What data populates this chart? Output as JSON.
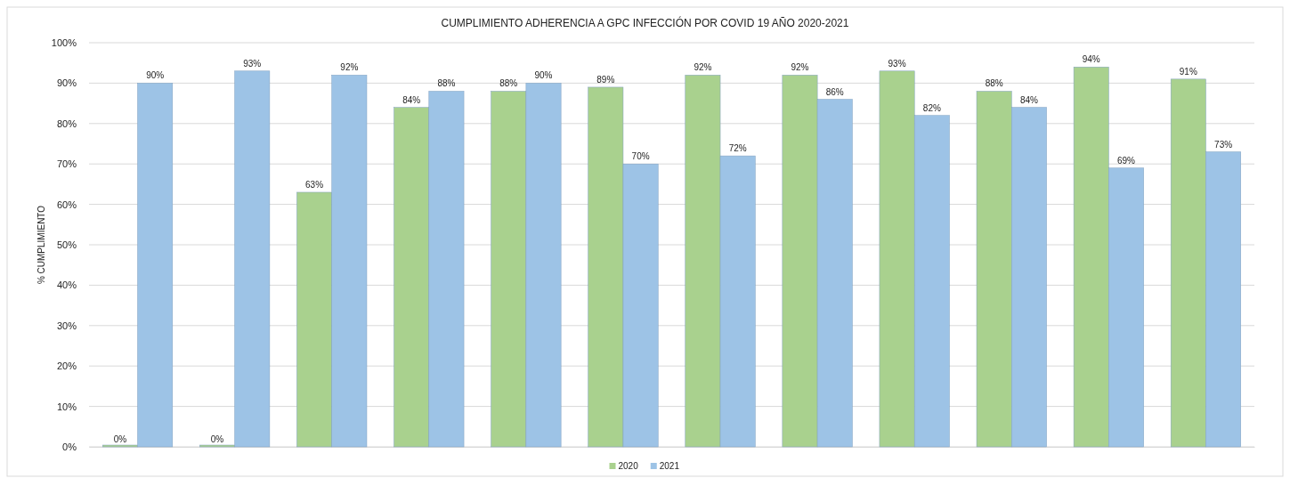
{
  "chart_data": {
    "type": "bar",
    "title": "CUMPLIMIENTO ADHERENCIA A GPC INFECCIÓN POR COVID 19 AÑO 2020-2021",
    "ylabel": "% CUMPLIMIENTO",
    "categories": [
      null,
      null,
      null,
      null,
      null,
      null,
      null,
      null,
      null,
      null,
      null,
      null
    ],
    "series": [
      {
        "name": "2020",
        "color": "#a9d18e",
        "values": [
          0,
          0,
          63,
          84,
          88,
          89,
          92,
          92,
          93,
          88,
          94,
          91
        ],
        "value_labels": [
          "0%",
          "0%",
          "63%",
          "84%",
          "88%",
          "89%",
          "92%",
          "92%",
          "93%",
          "88%",
          "94%",
          "91%"
        ]
      },
      {
        "name": "2021",
        "color": "#9dc3e6",
        "values": [
          90,
          93,
          92,
          88,
          90,
          70,
          72,
          86,
          82,
          84,
          69,
          73
        ],
        "value_labels": [
          "90%",
          "93%",
          "92%",
          "88%",
          "90%",
          "70%",
          "72%",
          "86%",
          "82%",
          "84%",
          "69%",
          "73%"
        ]
      }
    ],
    "ylim": [
      0,
      100
    ],
    "yticks": [
      {
        "value": 0,
        "label": "0%"
      },
      {
        "value": 10,
        "label": "10%"
      },
      {
        "value": 20,
        "label": "20%"
      },
      {
        "value": 30,
        "label": "30%"
      },
      {
        "value": 40,
        "label": "40%"
      },
      {
        "value": 50,
        "label": "50%"
      },
      {
        "value": 60,
        "label": "60%"
      },
      {
        "value": 70,
        "label": "70%"
      },
      {
        "value": 80,
        "label": "80%"
      },
      {
        "value": 90,
        "label": "90%"
      },
      {
        "value": 100,
        "label": "100%"
      }
    ],
    "grid": "y",
    "legend": "bottom"
  }
}
